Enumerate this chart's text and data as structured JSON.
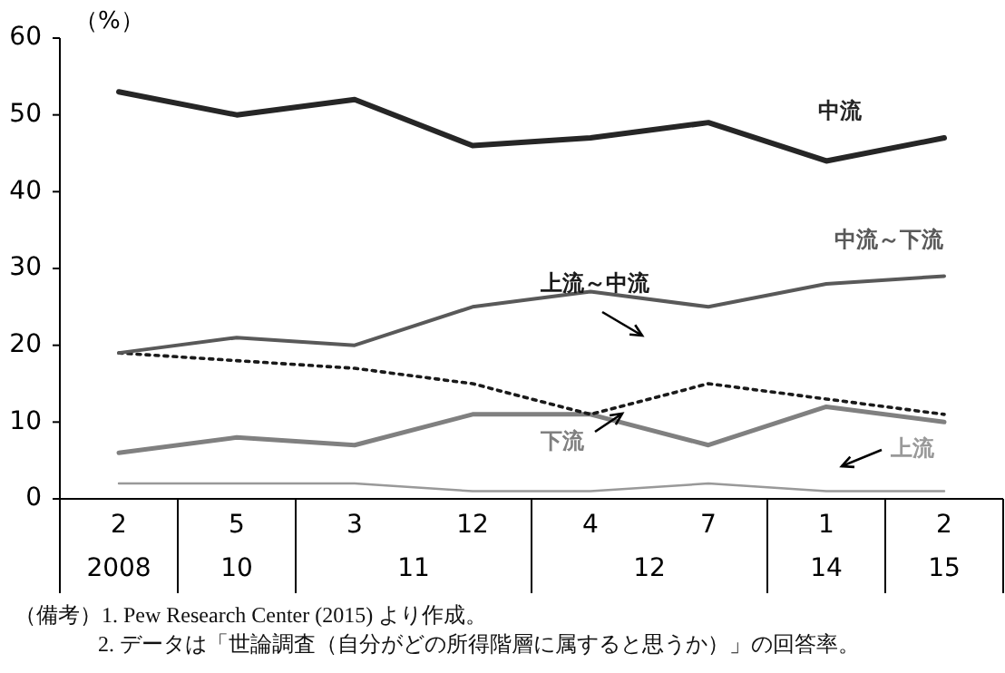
{
  "chart_data": {
    "type": "line",
    "ylabel": "（%）",
    "categories": [
      "2\n2008",
      "5\n10",
      "3\n11",
      "12",
      "4\n12",
      "7",
      "1\n14",
      "2\n15"
    ],
    "series": [
      {
        "name": "中流",
        "color": "#262626",
        "values": [
          53,
          50,
          52,
          46,
          47,
          49,
          44,
          47
        ]
      },
      {
        "name": "中流～下流",
        "color": "#595959",
        "values": [
          19,
          21,
          20,
          25,
          27,
          25,
          28,
          29
        ]
      },
      {
        "name": "上流～中流",
        "color": "#1a1a1a",
        "line_style": "dotted",
        "values": [
          19,
          18,
          17,
          15,
          11,
          15,
          13,
          11
        ]
      },
      {
        "name": "下流",
        "color": "#808080",
        "values": [
          6,
          8,
          7,
          11,
          11,
          7,
          12,
          10
        ]
      },
      {
        "name": "上流",
        "color": "#999999",
        "values": [
          2,
          2,
          2,
          1,
          1,
          2,
          1,
          1
        ]
      }
    ],
    "ylim": [
      0,
      60
    ],
    "yticks": [
      0,
      10,
      20,
      30,
      40,
      50,
      60
    ],
    "grid": false,
    "legend": false,
    "marker": "none",
    "annotations": [
      "（備考）1.  Pew Research Center (2015) より作成。",
      "2.  データは「世論調査（自分がどの所得階層に属すると思うか）」の回答率。"
    ]
  }
}
